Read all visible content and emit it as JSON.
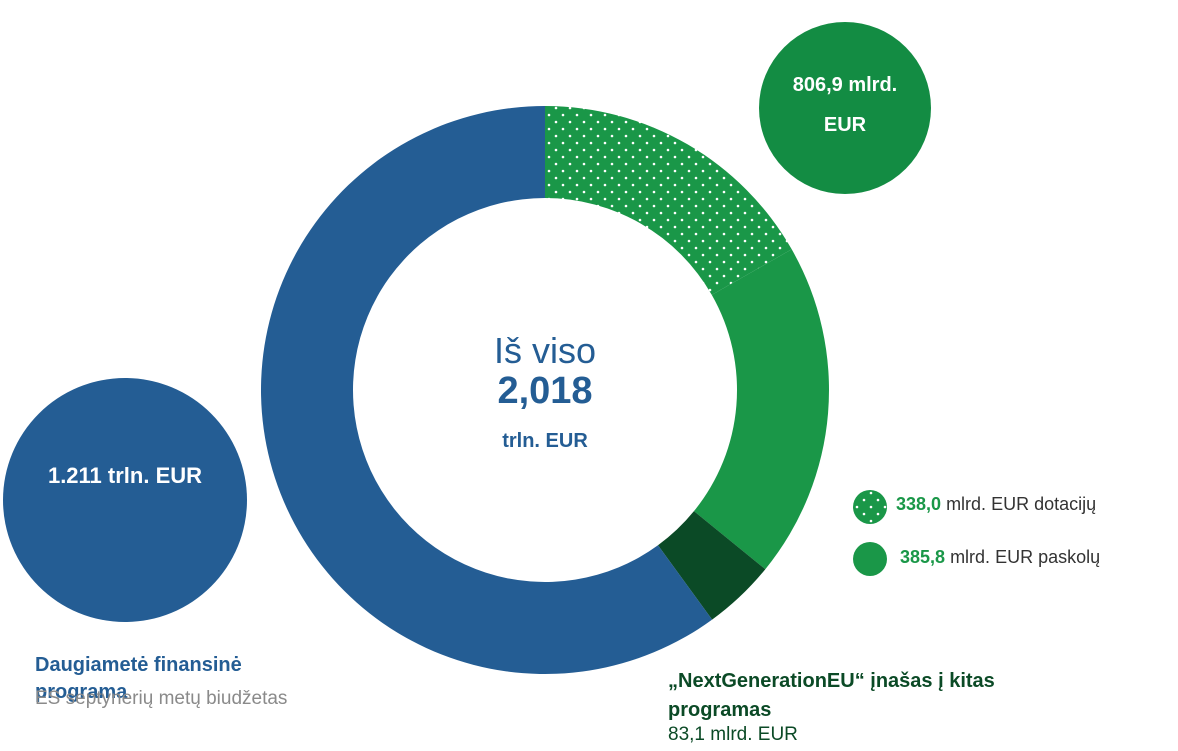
{
  "chart_data": {
    "type": "pie",
    "donut": true,
    "center": {
      "title": "Iš viso",
      "value": "2,018",
      "unit": "trln. EUR"
    },
    "categories": [
      "dotacijų",
      "paskolų",
      "„NextGenerationEU“ įnašas į kitas programas",
      "Daugiametė finansinė programa"
    ],
    "values": [
      338.0,
      385.8,
      83.1,
      1211
    ],
    "value_labels": [
      "338,0",
      "385,8",
      "83,1",
      "1.211 trln. EUR"
    ],
    "unit": "mlrd. EUR",
    "colors": [
      "#1a9748",
      "#1a9748",
      "#0b4a26",
      "#245d94"
    ],
    "patterns": [
      "dots",
      "solid",
      "solid",
      "solid"
    ],
    "ngeu_total": "806,9 mlrd. EUR",
    "mff_subtitle": "ES septynerių metų biudžetas"
  }
}
